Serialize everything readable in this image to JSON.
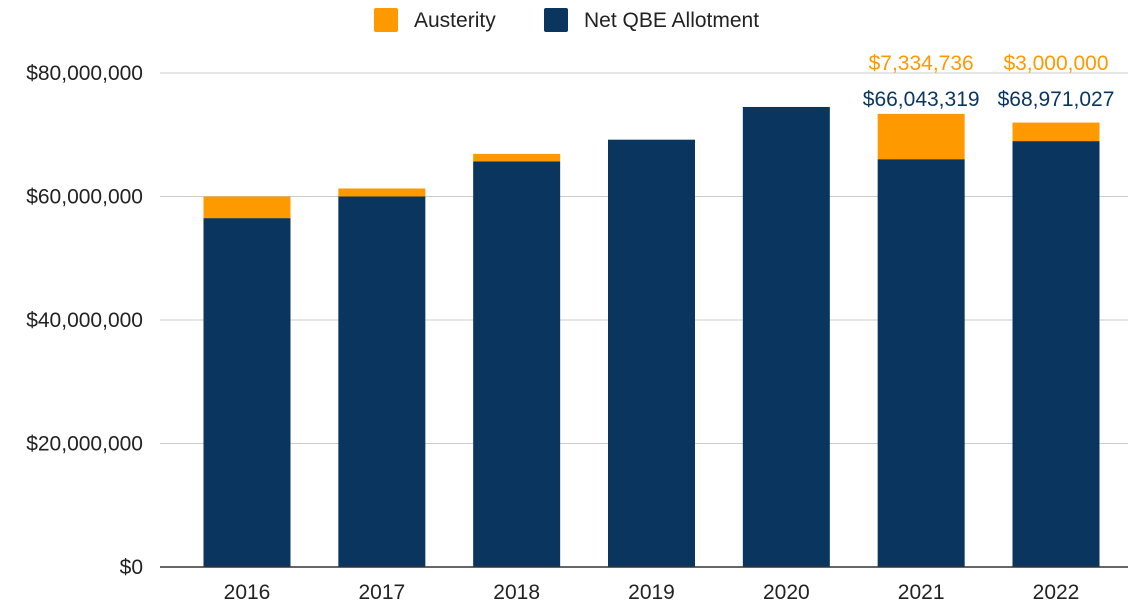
{
  "chart_data": {
    "type": "bar",
    "stacked": true,
    "categories": [
      "2016",
      "2017",
      "2018",
      "2019",
      "2020",
      "2021",
      "2022"
    ],
    "series": [
      {
        "name": "Net QBE Allotment",
        "color": "#0a355e",
        "values": [
          56500000,
          60000000,
          65700000,
          69200000,
          74500000,
          66043319,
          68971027
        ]
      },
      {
        "name": "Austerity",
        "color": "#ff9900",
        "values": [
          3500000,
          1300000,
          1200000,
          0,
          0,
          7334736,
          3000000
        ]
      }
    ],
    "legend_order": [
      "Austerity",
      "Net QBE Allotment"
    ],
    "legend_position": "top",
    "y_ticks": [
      "$0",
      "$20,000,000",
      "$40,000,000",
      "$60,000,000",
      "$80,000,000"
    ],
    "ylim": [
      0,
      80000000
    ],
    "grid": true,
    "data_labels": [
      {
        "category": "2021",
        "series": "Austerity",
        "text": "$7,334,736"
      },
      {
        "category": "2021",
        "series": "Net QBE Allotment",
        "text": "$66,043,319"
      },
      {
        "category": "2022",
        "series": "Austerity",
        "text": "$3,000,000"
      },
      {
        "category": "2022",
        "series": "Net QBE Allotment",
        "text": "$68,971,027"
      }
    ]
  }
}
